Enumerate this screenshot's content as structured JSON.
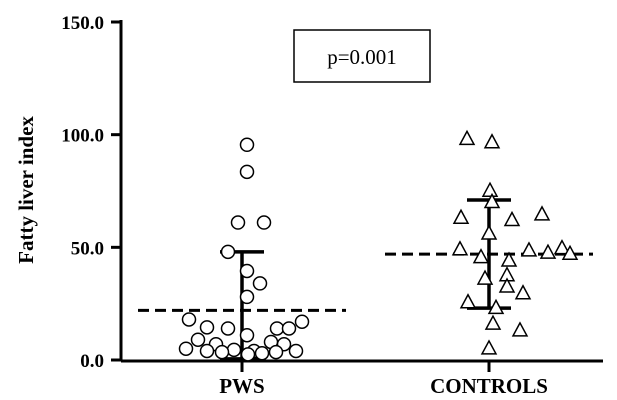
{
  "chart_data": {
    "type": "scatter",
    "ylabel": "Fatty liver index",
    "xlabel": "",
    "ylim": [
      0,
      150
    ],
    "yticks": [
      "0.0",
      "50.0",
      "100.0",
      "150.0"
    ],
    "categories": [
      "PWS",
      "CONTROLS"
    ],
    "annotation": "p=0.001",
    "series": [
      {
        "category": "PWS",
        "marker": "circle",
        "mean": 22,
        "sd_range": [
          0.5,
          48
        ],
        "values": [
          95.5,
          83.5,
          61,
          61,
          48,
          39.5,
          34,
          28,
          18,
          17,
          14.5,
          14,
          14,
          14,
          11,
          9,
          8,
          7,
          7,
          5,
          4.5,
          4,
          4,
          4,
          3.5,
          3.5,
          3,
          2.5
        ]
      },
      {
        "category": "CONTROLS",
        "marker": "triangle",
        "mean": 47,
        "sd_range": [
          23,
          71
        ],
        "values": [
          98,
          96.5,
          75,
          70,
          64.5,
          63,
          62,
          56,
          49.5,
          49,
          48.5,
          47.5,
          47,
          45.5,
          44,
          37.5,
          36,
          32.5,
          29.5,
          25.5,
          23,
          16,
          13,
          5
        ]
      }
    ]
  }
}
